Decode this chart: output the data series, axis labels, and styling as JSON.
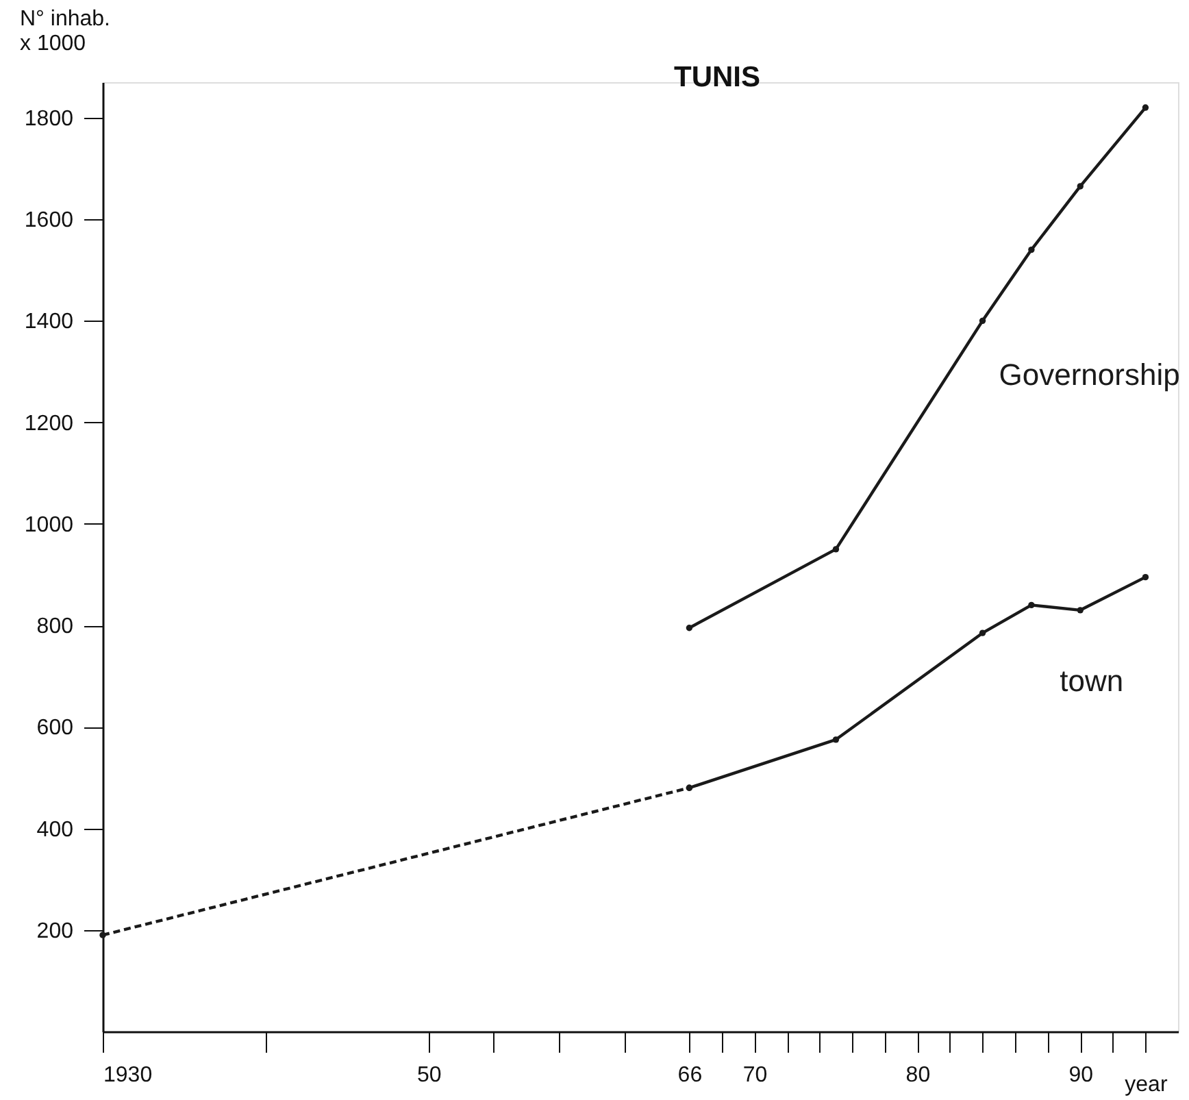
{
  "chart_data": {
    "type": "line",
    "title": "TUNIS",
    "xlabel": "year",
    "ylabel": "N° inhab.\nx 1000",
    "xlim": [
      1930,
      1996
    ],
    "ylim": [
      0,
      1870
    ],
    "xticks": [
      {
        "value": 1930,
        "label": "1930"
      },
      {
        "value": 1940,
        "label": null
      },
      {
        "value": 1950,
        "label": "50"
      },
      {
        "value": 1954,
        "label": null
      },
      {
        "value": 1958,
        "label": null
      },
      {
        "value": 1962,
        "label": null
      },
      {
        "value": 1966,
        "label": "66"
      },
      {
        "value": 1968,
        "label": null
      },
      {
        "value": 1970,
        "label": "70"
      },
      {
        "value": 1972,
        "label": null
      },
      {
        "value": 1974,
        "label": null
      },
      {
        "value": 1976,
        "label": null
      },
      {
        "value": 1978,
        "label": null
      },
      {
        "value": 1980,
        "label": "80"
      },
      {
        "value": 1982,
        "label": null
      },
      {
        "value": 1984,
        "label": null
      },
      {
        "value": 1986,
        "label": null
      },
      {
        "value": 1988,
        "label": null
      },
      {
        "value": 1990,
        "label": "90"
      },
      {
        "value": 1992,
        "label": null
      },
      {
        "value": 1994,
        "label": null
      }
    ],
    "yticks": [
      200,
      400,
      600,
      800,
      1000,
      1200,
      1400,
      1600,
      1800
    ],
    "grid": false,
    "marker": "circle",
    "line_style": "solid",
    "series": [
      {
        "name": "Governorship",
        "color": "#1a1a1a",
        "x": [
          1966,
          1975,
          1984,
          1987,
          1990,
          1994
        ],
        "values": [
          795,
          950,
          1400,
          1540,
          1665,
          1820
        ]
      },
      {
        "name": "town",
        "color": "#1a1a1a",
        "x": [
          1966,
          1975,
          1984,
          1987,
          1990,
          1994
        ],
        "values": [
          480,
          575,
          785,
          840,
          830,
          895
        ]
      },
      {
        "color": "#1a1a1a",
        "x": [
          1930,
          1966
        ],
        "values": [
          190,
          480
        ],
        "line_style": "dashed"
      }
    ]
  }
}
